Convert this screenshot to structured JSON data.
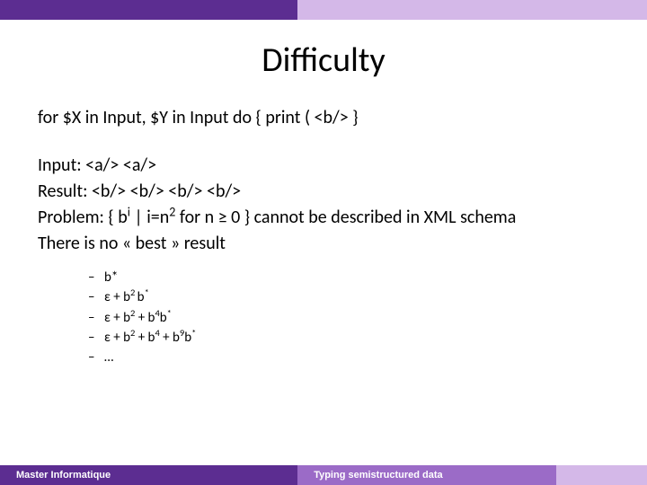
{
  "colors": {
    "dark_purple": "#5c2d91",
    "mid_purple": "#9b6bc7",
    "light_purple": "#d4b8e8",
    "text": "#000000",
    "footer_text": "#ffffff",
    "background": "#ffffff"
  },
  "title": "Difficulty",
  "lines": {
    "code": "for $X in Input, $Y in Input do { print ( <b/> }",
    "input": "Input: <a/> <a/>",
    "result": "Result: <b/> <b/> <b/> <b/>",
    "problem_prefix": "Problem: { b",
    "problem_sup1": "i",
    "problem_mid": " | i=n",
    "problem_sup2": "2",
    "problem_suffix": " for n ≥ 0 } cannot be described in XML schema",
    "nobest": "There is no « best » result"
  },
  "bullets": [
    {
      "text": "b*"
    },
    {
      "pre": "ε + b",
      "s1": "2 ",
      "mid": "b",
      "s2": "*"
    },
    {
      "pre": "ε + b",
      "s1": "2",
      "mid": " + b",
      "s2": "4",
      "mid2": "b",
      "s3": "*"
    },
    {
      "pre": "ε + b",
      "s1": "2",
      "mid": " + b",
      "s2": "4",
      "mid2": " + b",
      "s3": "9",
      "mid3": "b",
      "s4": "*"
    },
    {
      "text": "…"
    }
  ],
  "footer": {
    "left": "Master Informatique",
    "center": "Typing semistructured data"
  }
}
